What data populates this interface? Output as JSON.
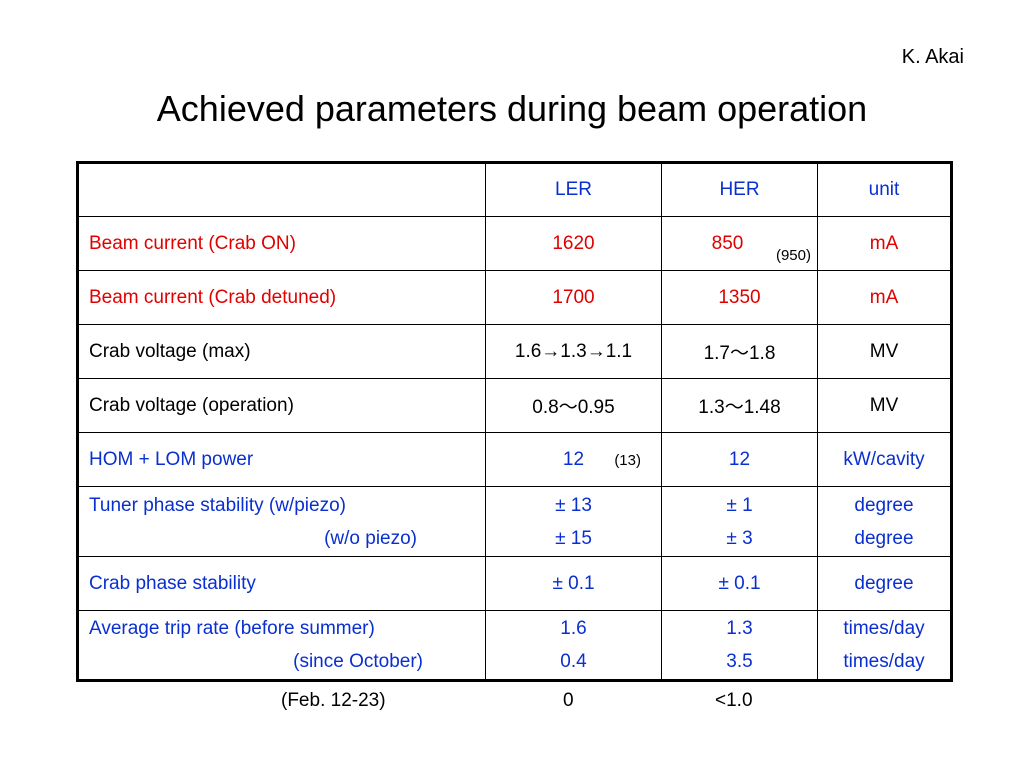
{
  "author": "K. Akai",
  "title": "Achieved parameters during beam operation",
  "table": {
    "header": [
      "",
      "LER",
      "HER",
      "unit"
    ],
    "rows": {
      "beam_on": {
        "label": "Beam current (Crab ON)",
        "ler": "1620",
        "her": "850",
        "her_note": "(950)",
        "unit": "mA"
      },
      "beam_detuned": {
        "label": "Beam current (Crab detuned)",
        "ler": "1700",
        "her": "1350",
        "unit": "mA"
      },
      "voltage_max": {
        "label": "Crab voltage (max)",
        "ler": "1.6→1.3→1.1",
        "her": "1.7～1.8",
        "unit": "MV"
      },
      "voltage_op": {
        "label": "Crab voltage (operation)",
        "ler": "0.8～0.95",
        "her": "1.3～1.48",
        "unit": "MV"
      },
      "hom_power": {
        "label": "HOM + LOM power",
        "ler": "12",
        "ler_note": "(13)",
        "her": "12",
        "unit": "kW/cavity"
      },
      "tuner": {
        "label": "Tuner phase stability (w/piezo)",
        "label2": "(w/o piezo)",
        "ler": "± 13",
        "ler2": "± 15",
        "her": "± 1",
        "her2": "± 3",
        "unit": "degree",
        "unit2": "degree"
      },
      "crab_phase": {
        "label": "Crab phase stability",
        "ler": "± 0.1",
        "her": "± 0.1",
        "unit": "degree"
      },
      "trip": {
        "label": "Average trip rate (before summer)",
        "label2": "(since October)",
        "ler": "1.6",
        "ler2": "0.4",
        "her": "1.3",
        "her2": "3.5",
        "unit": "times/day",
        "unit2": "times/day"
      }
    }
  },
  "footer": {
    "label": "(Feb. 12-23)",
    "ler": "0",
    "her": "<1.0"
  },
  "colors": {
    "red": "#e00000",
    "blue": "#0a2fd0",
    "black": "#000000"
  }
}
